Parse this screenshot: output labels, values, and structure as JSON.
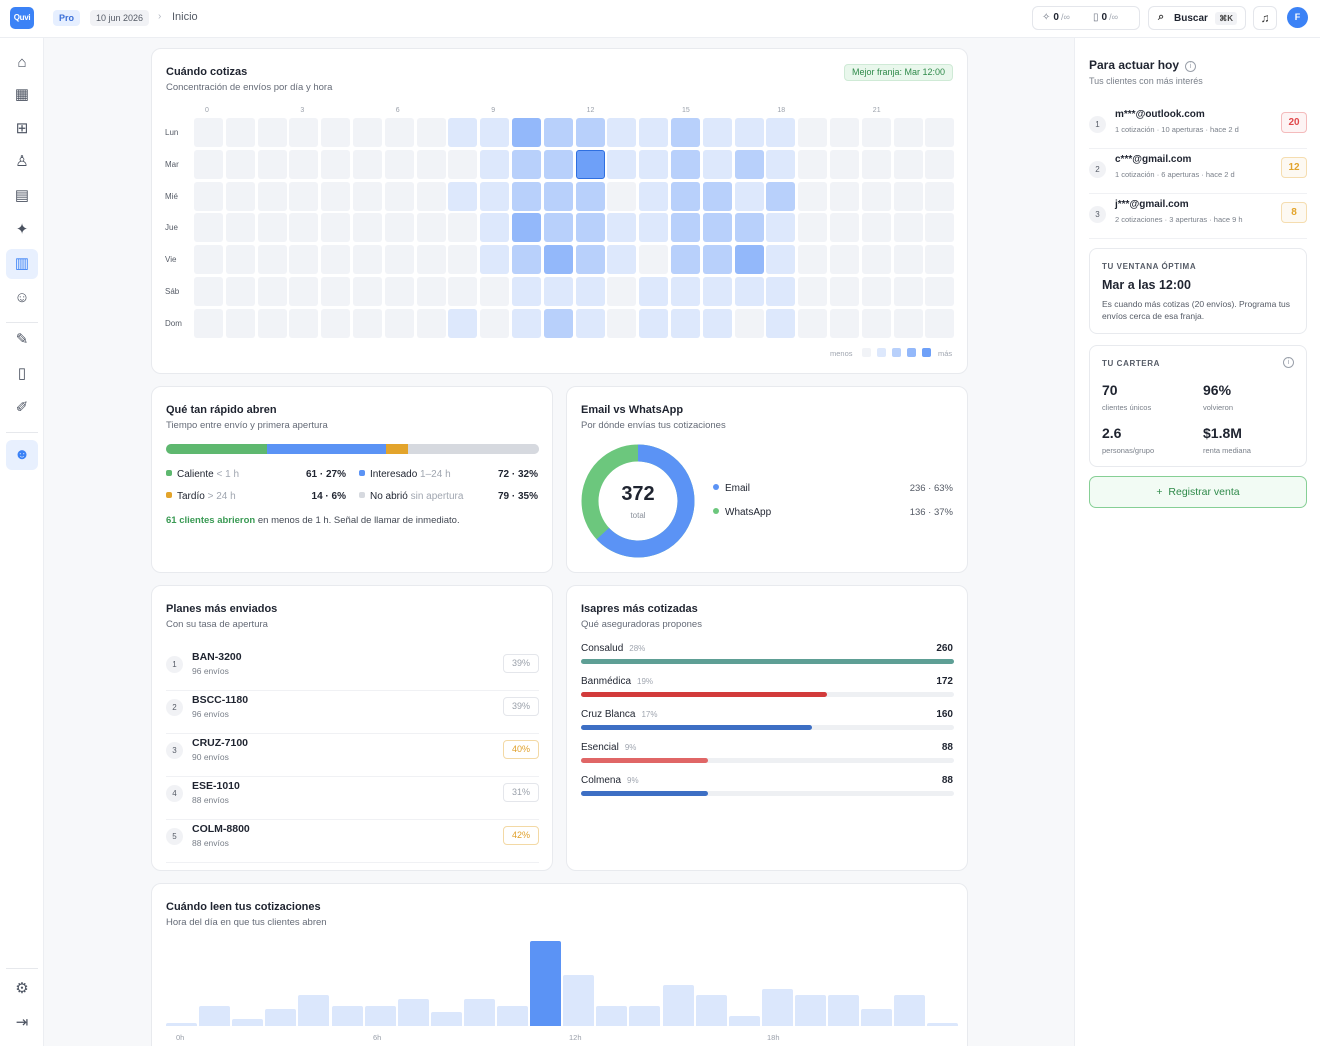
{
  "app": {
    "logo": "Quvi",
    "plan_badge": "Pro",
    "date": "10 jun 2026",
    "breadcrumb": "Inicio"
  },
  "topbar": {
    "counter_a": {
      "icon": "sparkle-icon",
      "value": "0",
      "limit": "/∞"
    },
    "counter_b": {
      "icon": "document-icon",
      "value": "0",
      "limit": "/∞"
    },
    "search": {
      "label": "Buscar",
      "shortcut": "⌘K"
    },
    "avatar": "F"
  },
  "sidebar": {
    "items": [
      {
        "name": "home-icon",
        "glyph": "⌂"
      },
      {
        "name": "calculator-icon",
        "glyph": "▦"
      },
      {
        "name": "grid-icon",
        "glyph": "⊞"
      },
      {
        "name": "medal-icon",
        "glyph": "♖"
      },
      {
        "name": "document-icon",
        "glyph": "▤"
      },
      {
        "name": "sparkle-icon",
        "glyph": "✦"
      },
      {
        "name": "chart-icon",
        "glyph": "▥",
        "active": true
      },
      {
        "name": "users-icon",
        "glyph": "☺"
      },
      {
        "name": "wrench-icon",
        "glyph": "✎"
      },
      {
        "name": "book-icon",
        "glyph": "▯"
      },
      {
        "name": "edit-icon",
        "glyph": "✐"
      },
      {
        "name": "bot-icon",
        "glyph": "☻",
        "active": true
      },
      {
        "name": "user-settings-icon",
        "glyph": "⚙"
      },
      {
        "name": "logout-icon",
        "glyph": "⇥"
      }
    ]
  },
  "heatmap": {
    "title": "Cuándo cotizas",
    "subtitle": "Concentración de envíos por día y hora",
    "best_slot": "Mejor franja: Mar 12:00",
    "hour_labels": [
      "0",
      "3",
      "6",
      "9",
      "12",
      "15",
      "18",
      "21"
    ],
    "days": [
      "Lun",
      "Mar",
      "Mié",
      "Jue",
      "Vie",
      "Sáb",
      "Dom"
    ],
    "levels": [
      [
        0,
        0,
        0,
        0,
        0,
        0,
        0,
        0,
        1,
        1,
        3,
        2,
        2,
        1,
        1,
        2,
        1,
        1,
        1,
        0,
        0,
        0,
        0,
        0
      ],
      [
        0,
        0,
        0,
        0,
        0,
        0,
        0,
        0,
        0,
        1,
        2,
        2,
        4,
        1,
        1,
        2,
        1,
        2,
        1,
        0,
        0,
        0,
        0,
        0
      ],
      [
        0,
        0,
        0,
        0,
        0,
        0,
        0,
        0,
        1,
        1,
        2,
        2,
        2,
        0,
        1,
        2,
        2,
        1,
        2,
        0,
        0,
        0,
        0,
        0
      ],
      [
        0,
        0,
        0,
        0,
        0,
        0,
        0,
        0,
        0,
        1,
        3,
        2,
        2,
        1,
        1,
        2,
        2,
        2,
        1,
        0,
        0,
        0,
        0,
        0
      ],
      [
        0,
        0,
        0,
        0,
        0,
        0,
        0,
        0,
        0,
        1,
        2,
        3,
        2,
        1,
        0,
        2,
        2,
        3,
        1,
        0,
        0,
        0,
        0,
        0
      ],
      [
        0,
        0,
        0,
        0,
        0,
        0,
        0,
        0,
        0,
        0,
        1,
        1,
        1,
        0,
        1,
        1,
        1,
        1,
        1,
        0,
        0,
        0,
        0,
        0
      ],
      [
        0,
        0,
        0,
        0,
        0,
        0,
        0,
        0,
        1,
        0,
        1,
        2,
        1,
        0,
        1,
        1,
        1,
        0,
        1,
        0,
        0,
        0,
        0,
        0
      ]
    ],
    "legend_less": "menos",
    "legend_more": "más",
    "colors": [
      "#f1f3f7",
      "#dde8fc",
      "#b8d0fb",
      "#93b8fa",
      "#6ea0f8"
    ]
  },
  "speed": {
    "title": "Qué tan rápido abren",
    "subtitle": "Tiempo entre envío y primera apertura",
    "segments": [
      {
        "label": "Caliente",
        "hint": "< 1 h",
        "value": "61 · 27%",
        "fraction": 0.27,
        "color": "#5eb86f"
      },
      {
        "label": "Interesado",
        "hint": "1–24 h",
        "value": "72 · 32%",
        "fraction": 0.32,
        "color": "#5b93f5"
      },
      {
        "label": "Tardío",
        "hint": "> 24 h",
        "value": "14 · 6%",
        "fraction": 0.06,
        "color": "#e3a42b"
      },
      {
        "label": "No abrió",
        "hint": "sin apertura",
        "value": "79 · 35%",
        "fraction": 0.35,
        "color": "#d6d9df"
      }
    ],
    "note_highlight": "61 clientes abrieron",
    "note_rest": " en menos de 1 h. Señal de llamar de inmediato."
  },
  "channels": {
    "title": "Email vs WhatsApp",
    "subtitle": "Por dónde envías tus cotizaciones",
    "total": "372",
    "total_label": "total",
    "items": [
      {
        "label": "Email",
        "value": "236 · 63%",
        "fraction": 0.63,
        "color": "#5b93f5"
      },
      {
        "label": "WhatsApp",
        "value": "136 · 37%",
        "fraction": 0.37,
        "color": "#6cc77d"
      }
    ]
  },
  "plans": {
    "title": "Planes más enviados",
    "subtitle": "Con su tasa de apertura",
    "items": [
      {
        "num": "1",
        "name": "BAN-3200",
        "sends": "96 envíos",
        "rate": "39%",
        "hi": false
      },
      {
        "num": "2",
        "name": "BSCC-1180",
        "sends": "96 envíos",
        "rate": "39%",
        "hi": false
      },
      {
        "num": "3",
        "name": "CRUZ-7100",
        "sends": "90 envíos",
        "rate": "40%",
        "hi": true
      },
      {
        "num": "4",
        "name": "ESE-1010",
        "sends": "88 envíos",
        "rate": "31%",
        "hi": false
      },
      {
        "num": "5",
        "name": "COLM-8800",
        "sends": "88 envíos",
        "rate": "42%",
        "hi": true
      }
    ]
  },
  "isapres": {
    "title": "Isapres más cotizadas",
    "subtitle": "Qué aseguradoras propones",
    "items": [
      {
        "name": "Consalud",
        "pct": "28%",
        "value": "260",
        "fraction": 1.0,
        "color": "#5e9f95"
      },
      {
        "name": "Banmédica",
        "pct": "19%",
        "value": "172",
        "fraction": 0.66,
        "color": "#d23b3b"
      },
      {
        "name": "Cruz Blanca",
        "pct": "17%",
        "value": "160",
        "fraction": 0.62,
        "color": "#3d6fc4"
      },
      {
        "name": "Esencial",
        "pct": "9%",
        "value": "88",
        "fraction": 0.34,
        "color": "#e06666"
      },
      {
        "name": "Colmena",
        "pct": "9%",
        "value": "88",
        "fraction": 0.34,
        "color": "#3d6fc4"
      }
    ]
  },
  "hourly": {
    "title": "Cuándo leen tus cotizaciones",
    "subtitle": "Hora del día en que tus clientes abren",
    "axis_labels": [
      "0h",
      "6h",
      "12h",
      "18h"
    ],
    "values": [
      1,
      6,
      2,
      5,
      9,
      6,
      6,
      8,
      4,
      8,
      6,
      25,
      15,
      6,
      6,
      12,
      9,
      3,
      11,
      9,
      9,
      5,
      9,
      1
    ],
    "peak_index": 11
  },
  "right_panel": {
    "title": "Para actuar hoy",
    "subtitle": "Tus clientes con más interés",
    "clients": [
      {
        "num": "1",
        "email": "m***@outlook.com",
        "meta": "1 cotización · 10 aperturas · hace 2 d",
        "score": "20",
        "color": "#e0484b"
      },
      {
        "num": "2",
        "email": "c***@gmail.com",
        "meta": "1 cotización · 6 aperturas · hace 2 d",
        "score": "12",
        "color": "#e3a42b"
      },
      {
        "num": "3",
        "email": "j***@gmail.com",
        "meta": "2 cotizaciones · 3 aperturas · hace 9 h",
        "score": "8",
        "color": "#e3a42b"
      }
    ],
    "window": {
      "kicker": "TU VENTANA ÓPTIMA",
      "headline": "Mar a las 12:00",
      "text": "Es cuando más cotizas (20 envíos). Programa tus envíos cerca de esa franja."
    },
    "portfolio": {
      "kicker": "TU CARTERA",
      "kpis": [
        {
          "value": "70",
          "label": "clientes únicos"
        },
        {
          "value": "96%",
          "label": "volvieron"
        },
        {
          "value": "2.6",
          "label": "personas/grupo"
        },
        {
          "value": "$1.8M",
          "label": "renta mediana"
        }
      ]
    },
    "register_button": "Registrar venta"
  }
}
